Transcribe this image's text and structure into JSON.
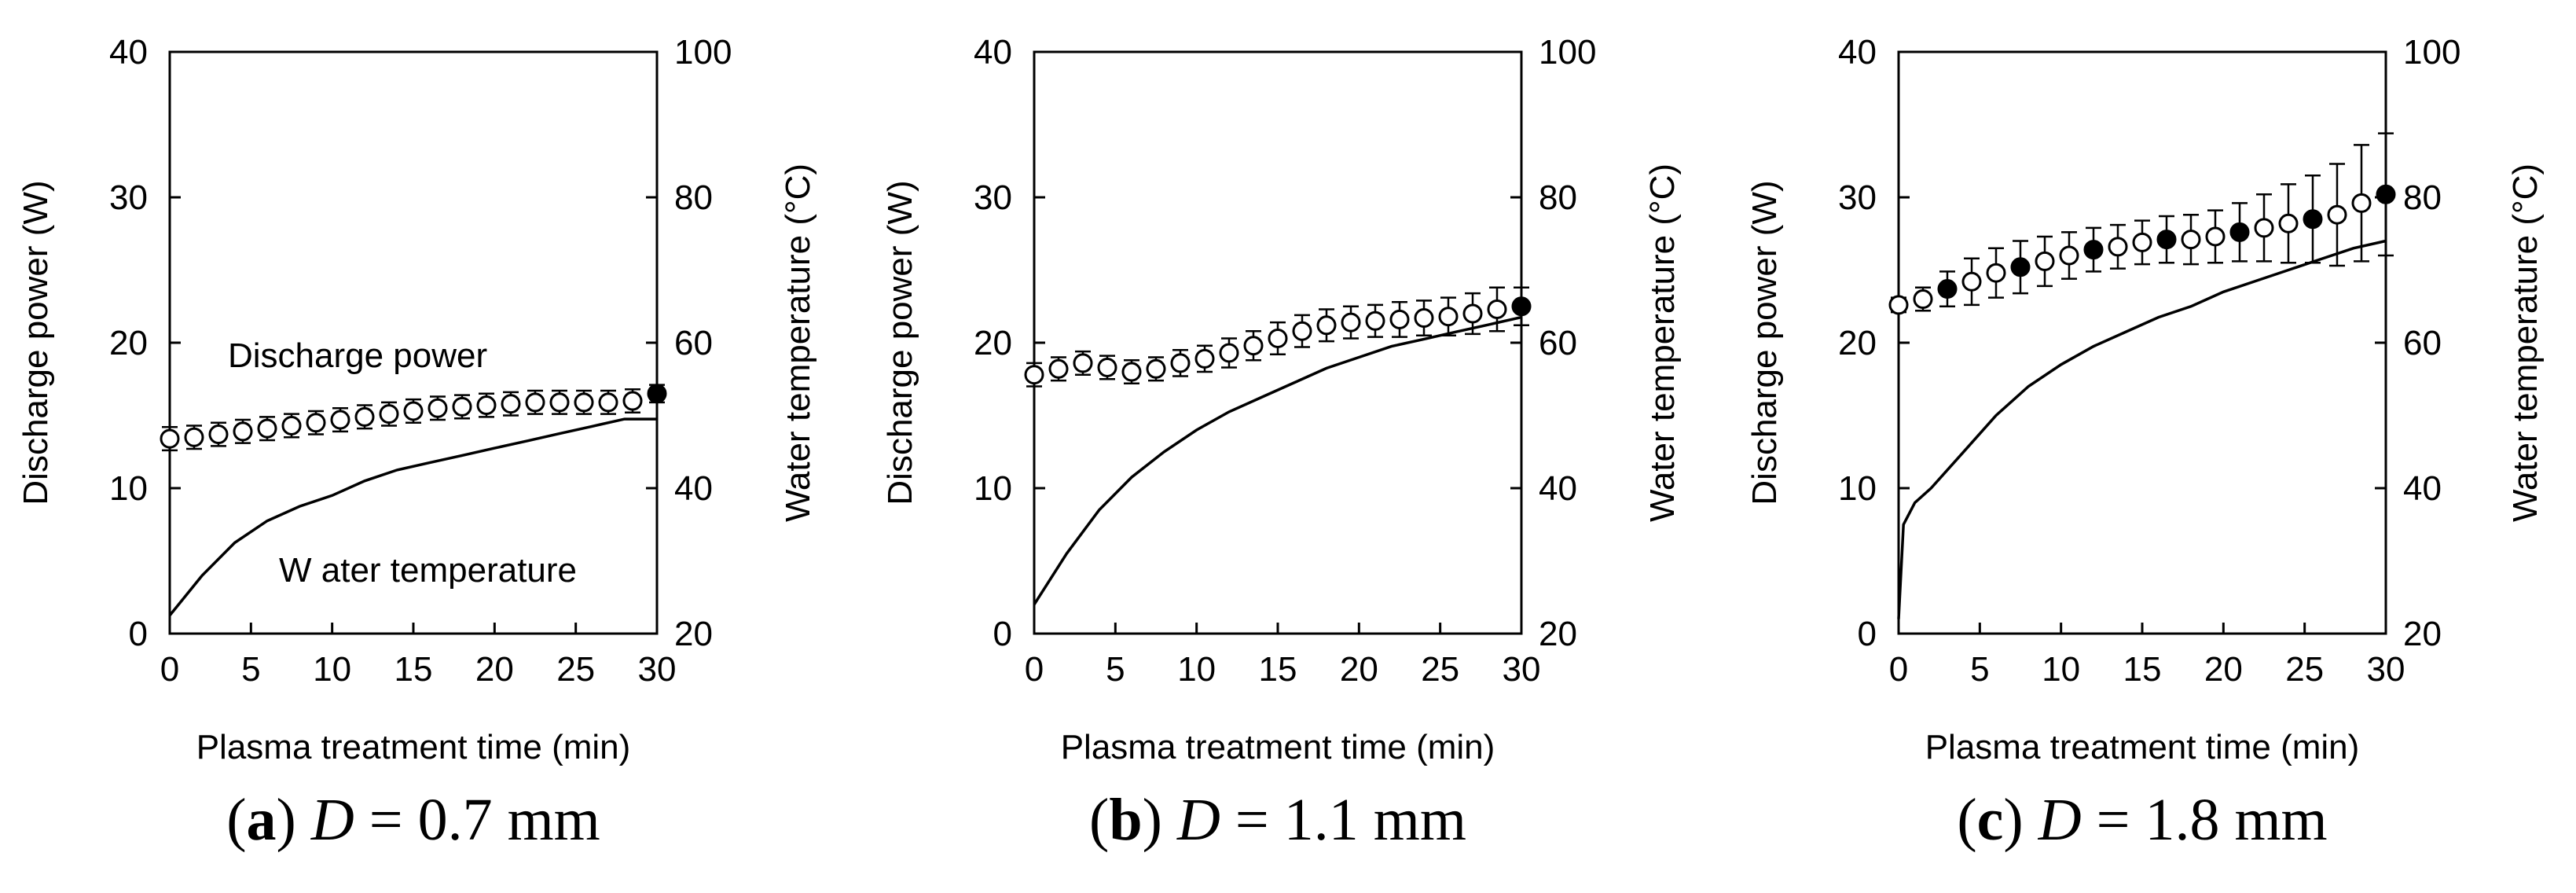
{
  "chart_data": [
    {
      "type": "line",
      "caption": {
        "letter": "a",
        "var": "D",
        "rest": " = 0.7 mm"
      },
      "xlabel": "Plasma treatment time (min)",
      "ylabel": "Discharge power (W)",
      "ylabel2": "Water temperature (°C)",
      "xlim": [
        0,
        30
      ],
      "ylim": [
        0,
        40
      ],
      "y2lim": [
        20,
        100
      ],
      "xticks": [
        "0",
        "5",
        "10",
        "15",
        "20",
        "25",
        "30"
      ],
      "yticks": [
        "0",
        "10",
        "20",
        "30",
        "40"
      ],
      "y2ticks": [
        "20",
        "40",
        "60",
        "80",
        "100"
      ],
      "annotations": {
        "power": "Discharge power",
        "temperature": "W ater temperature"
      },
      "series": [
        {
          "name": "Discharge power",
          "axis": "left",
          "marker": "circle",
          "x": [
            0,
            1.5,
            3,
            4.5,
            6,
            7.5,
            9,
            10.5,
            12,
            13.5,
            15,
            16.5,
            18,
            19.5,
            21,
            22.5,
            24,
            25.5,
            27,
            28.5,
            30
          ],
          "y": [
            13.4,
            13.5,
            13.7,
            13.9,
            14.1,
            14.3,
            14.5,
            14.7,
            14.9,
            15.1,
            15.3,
            15.5,
            15.6,
            15.7,
            15.8,
            15.9,
            15.9,
            15.9,
            15.9,
            16.0,
            16.5
          ],
          "err": [
            0.8,
            0.8,
            0.8,
            0.8,
            0.8,
            0.8,
            0.8,
            0.8,
            0.8,
            0.8,
            0.8,
            0.8,
            0.8,
            0.8,
            0.8,
            0.8,
            0.8,
            0.8,
            0.8,
            0.8,
            0.6
          ]
        },
        {
          "name": "Water temperature",
          "axis": "right",
          "x": [
            0,
            2,
            4,
            6,
            8,
            10,
            12,
            14,
            16,
            18,
            20,
            22,
            24,
            26,
            28,
            30
          ],
          "y": [
            22.5,
            28,
            32.5,
            35.5,
            37.5,
            39,
            41,
            42.5,
            43.5,
            44.5,
            45.5,
            46.5,
            47.5,
            48.5,
            49.5,
            49.5
          ]
        }
      ]
    },
    {
      "type": "line",
      "caption": {
        "letter": "b",
        "var": "D",
        "rest": " = 1.1 mm"
      },
      "xlabel": "Plasma treatment time (min)",
      "ylabel": "Discharge power (W)",
      "ylabel2": "Water temperature (°C)",
      "xlim": [
        0,
        30
      ],
      "ylim": [
        0,
        40
      ],
      "y2lim": [
        20,
        100
      ],
      "xticks": [
        "0",
        "5",
        "10",
        "15",
        "20",
        "25",
        "30"
      ],
      "yticks": [
        "0",
        "10",
        "20",
        "30",
        "40"
      ],
      "y2ticks": [
        "20",
        "40",
        "60",
        "80",
        "100"
      ],
      "series": [
        {
          "name": "Discharge power",
          "axis": "left",
          "marker": "circle",
          "x": [
            0,
            1.5,
            3,
            4.5,
            6,
            7.5,
            9,
            10.5,
            12,
            13.5,
            15,
            16.5,
            18,
            19.5,
            21,
            22.5,
            24,
            25.5,
            27,
            28.5,
            30
          ],
          "y": [
            17.8,
            18.2,
            18.6,
            18.3,
            18.0,
            18.2,
            18.6,
            18.9,
            19.3,
            19.8,
            20.3,
            20.8,
            21.2,
            21.4,
            21.5,
            21.6,
            21.7,
            21.8,
            22.0,
            22.3,
            22.5
          ],
          "err": [
            0.8,
            0.8,
            0.8,
            0.8,
            0.8,
            0.8,
            0.9,
            0.9,
            1.0,
            1.0,
            1.1,
            1.1,
            1.1,
            1.1,
            1.1,
            1.2,
            1.2,
            1.3,
            1.4,
            1.5,
            1.3
          ]
        },
        {
          "name": "Water temperature",
          "axis": "right",
          "x": [
            0,
            2,
            4,
            6,
            8,
            10,
            12,
            14,
            16,
            18,
            20,
            22,
            24,
            26,
            28,
            30
          ],
          "y": [
            24,
            31,
            37,
            41.5,
            45,
            48,
            50.5,
            52.5,
            54.5,
            56.5,
            58,
            59.5,
            60.5,
            61.5,
            62.5,
            63.5
          ]
        }
      ]
    },
    {
      "type": "line",
      "caption": {
        "letter": "c",
        "var": "D",
        "rest": " = 1.8 mm"
      },
      "xlabel": "Plasma treatment time (min)",
      "ylabel": "Discharge power (W)",
      "ylabel2": "Water temperature (°C)",
      "xlim": [
        0,
        30
      ],
      "ylim": [
        0,
        40
      ],
      "y2lim": [
        20,
        100
      ],
      "xticks": [
        "0",
        "5",
        "10",
        "15",
        "20",
        "25",
        "30"
      ],
      "yticks": [
        "0",
        "10",
        "20",
        "30",
        "40"
      ],
      "y2ticks": [
        "20",
        "40",
        "60",
        "80",
        "100"
      ],
      "series": [
        {
          "name": "Discharge power",
          "axis": "left",
          "marker": "circle",
          "x": [
            0,
            1.5,
            3,
            4.5,
            6,
            7.5,
            9,
            10.5,
            12,
            13.5,
            15,
            16.5,
            18,
            19.5,
            21,
            22.5,
            24,
            25.5,
            27,
            28.5,
            30
          ],
          "y": [
            22.6,
            23.0,
            23.7,
            24.2,
            24.8,
            25.2,
            25.6,
            26.0,
            26.4,
            26.6,
            26.9,
            27.1,
            27.1,
            27.3,
            27.6,
            27.9,
            28.2,
            28.5,
            28.8,
            29.6,
            30.2
          ],
          "err": [
            0.5,
            0.8,
            1.2,
            1.6,
            1.7,
            1.8,
            1.7,
            1.6,
            1.5,
            1.5,
            1.5,
            1.6,
            1.7,
            1.8,
            2.0,
            2.3,
            2.7,
            3.0,
            3.5,
            4.0,
            4.2
          ]
        },
        {
          "name": "Water temperature",
          "axis": "right",
          "x": [
            0,
            0.3,
            1,
            2,
            4,
            6,
            8,
            10,
            12,
            14,
            16,
            18,
            20,
            22,
            24,
            26,
            28,
            30
          ],
          "y": [
            22,
            35,
            38,
            40,
            45,
            50,
            54,
            57,
            59.5,
            61.5,
            63.5,
            65,
            67,
            68.5,
            70,
            71.5,
            73,
            74
          ]
        }
      ]
    }
  ]
}
